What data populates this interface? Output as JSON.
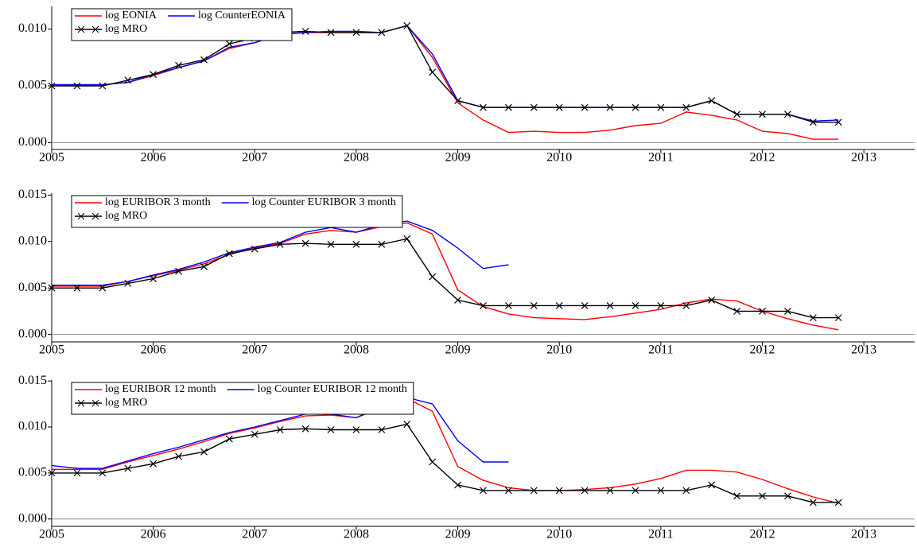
{
  "chart_data": [
    {
      "type": "line",
      "x": [
        2005,
        2005.25,
        2005.5,
        2005.75,
        2006,
        2006.25,
        2006.5,
        2006.75,
        2007,
        2007.25,
        2007.5,
        2007.75,
        2008,
        2008.25,
        2008.5,
        2008.75,
        2009,
        2009.25,
        2009.5,
        2009.75,
        2010,
        2010.25,
        2010.5,
        2010.75,
        2011,
        2011.25,
        2011.5,
        2011.75,
        2012,
        2012.25,
        2012.5,
        2012.75
      ],
      "xlim": [
        2005,
        2013.5
      ],
      "xticks": [
        2005,
        2006,
        2007,
        2008,
        2009,
        2010,
        2011,
        2012,
        2013
      ],
      "ylim": [
        -0.0006,
        0.012
      ],
      "yticks": [
        {
          "value": 0,
          "label": "0.000"
        },
        {
          "value": 0.005,
          "label": "0.005"
        },
        {
          "value": 0.01,
          "label": "0.010"
        }
      ],
      "series": [
        {
          "name": "log EONIA",
          "color": "#ff0000",
          "values": [
            0.0051,
            0.0051,
            0.0051,
            0.0053,
            0.0059,
            0.0066,
            0.0072,
            0.0083,
            0.0088,
            0.0095,
            0.0097,
            0.0097,
            0.0097,
            0.0097,
            0.0103,
            0.0075,
            0.0035,
            0.002,
            0.0009,
            0.001,
            0.0009,
            0.0009,
            0.0011,
            0.0015,
            0.0017,
            0.0027,
            0.0024,
            0.002,
            0.001,
            0.0008,
            0.0003,
            0.0003
          ]
        },
        {
          "name": "log CounterEONIA",
          "color": "#0000ff",
          "values": [
            0.0051,
            0.0051,
            0.0051,
            0.0053,
            0.006,
            0.0066,
            0.0072,
            0.0084,
            0.0088,
            0.0095,
            0.0097,
            0.0098,
            0.0098,
            0.0097,
            0.0103,
            0.0078,
            0.0037,
            0.0031,
            0.0031,
            0.0031,
            0.0031,
            0.0031,
            0.0031,
            0.0031,
            0.0031,
            0.0031,
            0.0037,
            0.0025,
            0.0025,
            0.0025,
            0.0019,
            0.002
          ]
        },
        {
          "name": "log MRO",
          "color": "#000000",
          "marker": "x",
          "values": [
            0.005,
            0.005,
            0.005,
            0.0055,
            0.006,
            0.0068,
            0.0073,
            0.0087,
            0.0092,
            0.0097,
            0.0098,
            0.0097,
            0.0097,
            0.0097,
            0.0103,
            0.0062,
            0.0037,
            0.0031,
            0.0031,
            0.0031,
            0.0031,
            0.0031,
            0.0031,
            0.0031,
            0.0031,
            0.0031,
            0.0037,
            0.0025,
            0.0025,
            0.0025,
            0.0018,
            0.0018
          ]
        }
      ]
    },
    {
      "type": "line",
      "x": [
        2005,
        2005.25,
        2005.5,
        2005.75,
        2006,
        2006.25,
        2006.5,
        2006.75,
        2007,
        2007.25,
        2007.5,
        2007.75,
        2008,
        2008.25,
        2008.5,
        2008.75,
        2009,
        2009.25,
        2009.5,
        2009.75,
        2010,
        2010.25,
        2010.5,
        2010.75,
        2011,
        2011.25,
        2011.5,
        2011.75,
        2012,
        2012.25,
        2012.5,
        2012.75
      ],
      "xlim": [
        2005,
        2013.5
      ],
      "xticks": [
        2005,
        2006,
        2007,
        2008,
        2009,
        2010,
        2011,
        2012,
        2013
      ],
      "ylim": [
        -0.0008,
        0.0152
      ],
      "yticks": [
        {
          "value": 0,
          "label": "0.000"
        },
        {
          "value": 0.005,
          "label": "0.005"
        },
        {
          "value": 0.01,
          "label": "0.010"
        },
        {
          "value": 0.015,
          "label": "0.015"
        }
      ],
      "series": [
        {
          "name": "log EURIBOR 3 month",
          "color": "#ff0000",
          "values": [
            0.0052,
            0.0052,
            0.0052,
            0.0057,
            0.0063,
            0.0069,
            0.0076,
            0.0086,
            0.0093,
            0.0098,
            0.0108,
            0.0112,
            0.011,
            0.0116,
            0.012,
            0.0108,
            0.0048,
            0.003,
            0.0022,
            0.0018,
            0.0017,
            0.0016,
            0.0019,
            0.0023,
            0.0027,
            0.0034,
            0.0038,
            0.0036,
            0.0025,
            0.0017,
            0.001,
            0.0005
          ]
        },
        {
          "name": "log Counter EURIBOR 3 month",
          "color": "#0000ff",
          "values": [
            0.0053,
            0.0053,
            0.0053,
            0.0057,
            0.0064,
            0.007,
            0.0078,
            0.0088,
            0.0094,
            0.0099,
            0.011,
            0.0115,
            0.011,
            0.0118,
            0.0122,
            0.0112,
            0.0093,
            0.0071,
            0.0075,
            null,
            null,
            null,
            null,
            null,
            null,
            null,
            null,
            null,
            null,
            null,
            null,
            null
          ]
        },
        {
          "name": "log MRO",
          "color": "#000000",
          "marker": "x",
          "values": [
            0.005,
            0.005,
            0.005,
            0.0055,
            0.006,
            0.0068,
            0.0073,
            0.0087,
            0.0092,
            0.0097,
            0.0098,
            0.0097,
            0.0097,
            0.0097,
            0.0103,
            0.0062,
            0.0037,
            0.0031,
            0.0031,
            0.0031,
            0.0031,
            0.0031,
            0.0031,
            0.0031,
            0.0031,
            0.0031,
            0.0037,
            0.0025,
            0.0025,
            0.0025,
            0.0018,
            0.0018
          ]
        }
      ]
    },
    {
      "type": "line",
      "x": [
        2005,
        2005.25,
        2005.5,
        2005.75,
        2006,
        2006.25,
        2006.5,
        2006.75,
        2007,
        2007.25,
        2007.5,
        2007.75,
        2008,
        2008.25,
        2008.5,
        2008.75,
        2009,
        2009.25,
        2009.5,
        2009.75,
        2010,
        2010.25,
        2010.5,
        2010.75,
        2011,
        2011.25,
        2011.5,
        2011.75,
        2012,
        2012.25,
        2012.5,
        2012.75
      ],
      "xlim": [
        2005,
        2013.5
      ],
      "xticks": [
        2005,
        2006,
        2007,
        2008,
        2009,
        2010,
        2011,
        2012,
        2013
      ],
      "ylim": [
        -0.0008,
        0.0151
      ],
      "yticks": [
        {
          "value": 0,
          "label": "0.000"
        },
        {
          "value": 0.005,
          "label": "0.005"
        },
        {
          "value": 0.01,
          "label": "0.010"
        },
        {
          "value": 0.015,
          "label": "0.015"
        }
      ],
      "series": [
        {
          "name": "log EURIBOR 12 month",
          "color": "#ff0000",
          "values": [
            0.0054,
            0.0054,
            0.0054,
            0.0062,
            0.0069,
            0.0076,
            0.0084,
            0.0093,
            0.0099,
            0.0106,
            0.0112,
            0.0113,
            0.011,
            0.0121,
            0.0131,
            0.0117,
            0.0057,
            0.0042,
            0.0034,
            0.0031,
            0.0031,
            0.0032,
            0.0034,
            0.0038,
            0.0044,
            0.0053,
            0.0053,
            0.0051,
            0.0043,
            0.0033,
            0.0024,
            0.0017
          ]
        },
        {
          "name": "log Counter EURIBOR 12 month",
          "color": "#0000ff",
          "values": [
            0.0058,
            0.0055,
            0.0055,
            0.0063,
            0.0071,
            0.0078,
            0.0086,
            0.0094,
            0.01,
            0.0107,
            0.0114,
            0.0114,
            0.011,
            0.0123,
            0.0132,
            0.0125,
            0.0085,
            0.0062,
            0.0062,
            null,
            null,
            null,
            null,
            null,
            null,
            null,
            null,
            null,
            null,
            null,
            null,
            null
          ]
        },
        {
          "name": "log MRO",
          "color": "#000000",
          "marker": "x",
          "values": [
            0.005,
            0.005,
            0.005,
            0.0055,
            0.006,
            0.0068,
            0.0073,
            0.0087,
            0.0092,
            0.0097,
            0.0098,
            0.0097,
            0.0097,
            0.0097,
            0.0103,
            0.0062,
            0.0037,
            0.0031,
            0.0031,
            0.0031,
            0.0031,
            0.0031,
            0.0031,
            0.0031,
            0.0031,
            0.0031,
            0.0037,
            0.0025,
            0.0025,
            0.0025,
            0.0018,
            0.0018
          ]
        }
      ]
    }
  ]
}
